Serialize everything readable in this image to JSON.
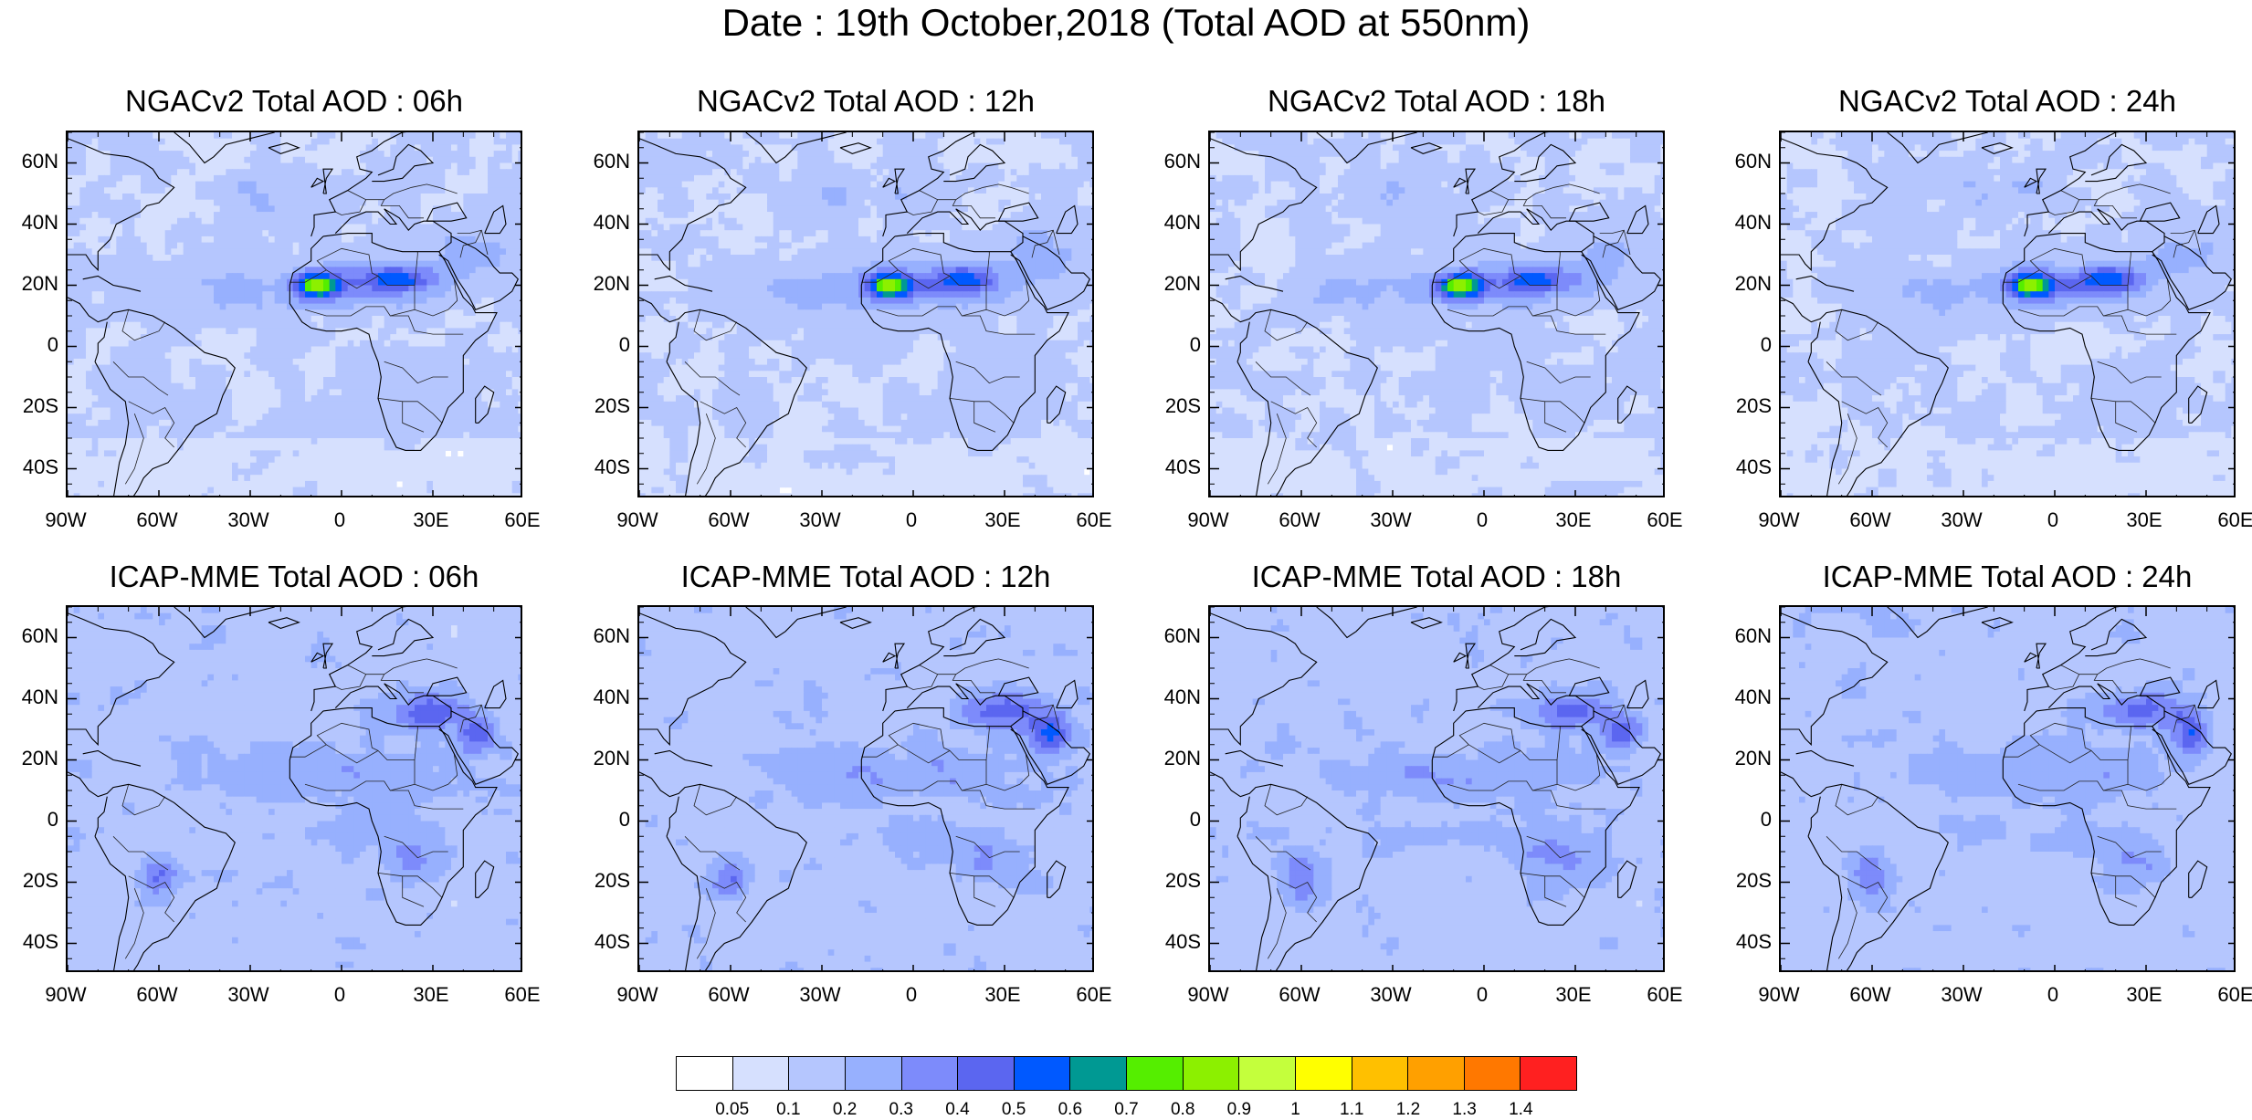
{
  "title": "Date : 19th October,2018 (Total AOD at 550nm)",
  "panels": [
    {
      "title": "NGACv2 Total AOD : 06h",
      "row": 0,
      "col": 0,
      "model": "NGACv2",
      "hour": 6
    },
    {
      "title": "NGACv2 Total AOD : 12h",
      "row": 0,
      "col": 1,
      "model": "NGACv2",
      "hour": 12
    },
    {
      "title": "NGACv2 Total AOD : 18h",
      "row": 0,
      "col": 2,
      "model": "NGACv2",
      "hour": 18
    },
    {
      "title": "NGACv2 Total AOD : 24h",
      "row": 0,
      "col": 3,
      "model": "NGACv2",
      "hour": 24
    },
    {
      "title": "ICAP-MME Total AOD : 06h",
      "row": 1,
      "col": 0,
      "model": "ICAP",
      "hour": 6
    },
    {
      "title": "ICAP-MME Total AOD : 12h",
      "row": 1,
      "col": 1,
      "model": "ICAP",
      "hour": 12
    },
    {
      "title": "ICAP-MME Total AOD : 18h",
      "row": 1,
      "col": 2,
      "model": "ICAP",
      "hour": 18
    },
    {
      "title": "ICAP-MME Total AOD : 24h",
      "row": 1,
      "col": 3,
      "model": "ICAP",
      "hour": 24
    }
  ],
  "lat_ticks": [
    "60N",
    "40N",
    "20N",
    "0",
    "20S",
    "40S"
  ],
  "lat_values": [
    60,
    40,
    20,
    0,
    -20,
    -40
  ],
  "lon_ticks": [
    "90W",
    "60W",
    "30W",
    "0",
    "30E",
    "60E"
  ],
  "lon_values": [
    -90,
    -60,
    -30,
    0,
    30,
    60
  ],
  "map_extent": {
    "lon_min": -90,
    "lon_max": 60,
    "lat_min": -50,
    "lat_max": 70
  },
  "colorbar": {
    "labels": [
      "0.05",
      "0.1",
      "0.2",
      "0.3",
      "0.4",
      "0.5",
      "0.6",
      "0.7",
      "0.8",
      "0.9",
      "1",
      "1.1",
      "1.2",
      "1.3",
      "1.4"
    ],
    "colors": [
      "#ffffff",
      "#d6e0fe",
      "#b5c6fe",
      "#97b0fe",
      "#7d8bfb",
      "#5b66f0",
      "#0059ff",
      "#009993",
      "#55ee00",
      "#8cf000",
      "#c4ff3c",
      "#ffff00",
      "#ffc000",
      "#ffa000",
      "#ff7800",
      "#ff2020"
    ]
  }
}
